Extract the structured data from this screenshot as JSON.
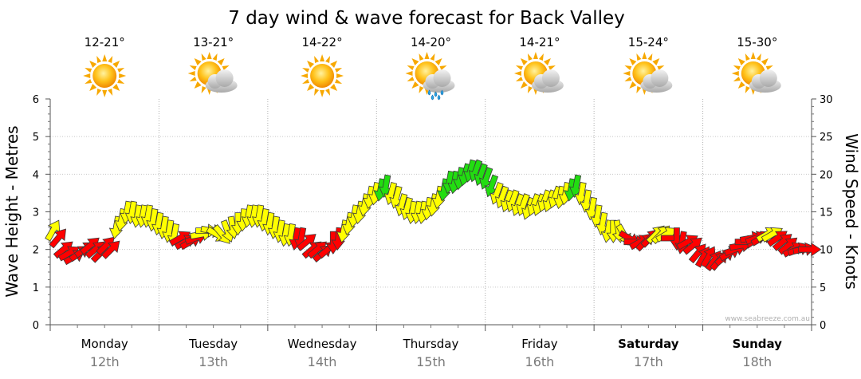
{
  "chart_data": {
    "type": "line",
    "title": "7 day wind & wave forecast for Back Valley",
    "ylabel_left": "Wave Height - Metres",
    "ylabel_right": "Wind Speed - Knots",
    "ylim_left": [
      0,
      6
    ],
    "ylim_right": [
      0,
      30
    ],
    "yticks_left": [
      "0",
      "1",
      "2",
      "3",
      "4",
      "5",
      "6"
    ],
    "yticks_right": [
      "0",
      "5",
      "10",
      "15",
      "20",
      "25",
      "30"
    ],
    "watermark": "www.seabreeze.com.au",
    "days": [
      {
        "name": "Monday",
        "date": "12th",
        "temp": "12-21°",
        "icon": "sun-icon",
        "bold": false
      },
      {
        "name": "Tuesday",
        "date": "13th",
        "temp": "13-21°",
        "icon": "sun-cloud-icon",
        "bold": false
      },
      {
        "name": "Wednesday",
        "date": "14th",
        "temp": "14-22°",
        "icon": "sun-icon",
        "bold": false
      },
      {
        "name": "Thursday",
        "date": "15th",
        "temp": "14-20°",
        "icon": "sun-rain-icon",
        "bold": false
      },
      {
        "name": "Friday",
        "date": "16th",
        "temp": "14-21°",
        "icon": "sun-cloud-icon",
        "bold": false
      },
      {
        "name": "Saturday",
        "date": "17th",
        "temp": "15-24°",
        "icon": "sun-cloud-icon",
        "bold": true
      },
      {
        "name": "Sunday",
        "date": "18th",
        "temp": "15-30°",
        "icon": "sun-cloud-icon",
        "bold": true
      }
    ],
    "colors": {
      "calm": "#ff0000",
      "moderate": "#ffff00",
      "strong": "#22dd11"
    },
    "wind_knots": [
      12.5,
      11.5,
      10,
      9.5,
      9,
      9.5,
      10,
      10.5,
      10,
      9.5,
      10.5,
      10,
      13,
      14,
      15,
      15,
      14.5,
      14.5,
      14.5,
      14,
      13.5,
      13,
      12.5,
      12,
      11.5,
      11,
      11,
      11.5,
      12,
      12.5,
      12.5,
      12,
      12,
      12.5,
      13,
      13.5,
      14,
      14.5,
      14.5,
      14.5,
      14,
      13.5,
      13,
      12.5,
      12,
      12,
      11.5,
      11.5,
      11,
      10,
      10,
      9.5,
      10,
      11,
      11.5,
      12.5,
      13.5,
      14.5,
      15,
      16,
      17,
      17.5,
      18,
      18.5,
      17.5,
      17,
      16,
      15.5,
      15,
      15,
      15,
      15.5,
      16,
      17,
      18,
      19,
      19,
      19.5,
      20,
      20.5,
      20.5,
      20,
      19.5,
      18.5,
      17.5,
      17,
      16.5,
      16.5,
      16,
      16,
      15.5,
      16,
      16,
      16.5,
      16.5,
      17,
      17,
      17.5,
      18,
      18.5,
      17.5,
      16.5,
      15.5,
      14.5,
      13.5,
      12.5,
      12.5,
      12.5,
      12,
      11.5,
      11,
      11,
      11,
      11.5,
      12,
      12,
      12,
      11.5,
      11.5,
      11,
      11,
      10.5,
      9.5,
      9,
      9,
      8.5,
      8.5,
      9,
      9.5,
      10,
      10.5,
      11,
      11.5,
      11.5,
      11.5,
      12,
      12,
      11.5,
      11,
      10.5,
      10,
      10,
      10,
      10
    ],
    "direction_deg": [
      30,
      40,
      50,
      60,
      60,
      55,
      55,
      50,
      50,
      45,
      45,
      45,
      190,
      190,
      190,
      190,
      190,
      190,
      190,
      190,
      190,
      190,
      190,
      190,
      60,
      60,
      60,
      70,
      80,
      90,
      100,
      120,
      140,
      160,
      170,
      180,
      185,
      190,
      190,
      190,
      190,
      190,
      190,
      190,
      190,
      190,
      190,
      190,
      50,
      50,
      50,
      50,
      50,
      180,
      185,
      190,
      190,
      190,
      190,
      190,
      190,
      190,
      190,
      190,
      195,
      195,
      195,
      195,
      190,
      190,
      190,
      190,
      190,
      190,
      190,
      190,
      190,
      190,
      195,
      195,
      200,
      200,
      200,
      200,
      200,
      200,
      200,
      200,
      200,
      200,
      200,
      200,
      200,
      200,
      200,
      200,
      190,
      190,
      190,
      190,
      190,
      190,
      190,
      190,
      190,
      190,
      180,
      170,
      150,
      120,
      90,
      60,
      45,
      45,
      45,
      45,
      60,
      90,
      180,
      190,
      60,
      50,
      40,
      30,
      30,
      35,
      40,
      50,
      60,
      70,
      80,
      90,
      80,
      70,
      60,
      60,
      60,
      55,
      50,
      50,
      60,
      70,
      80,
      90
    ]
  }
}
